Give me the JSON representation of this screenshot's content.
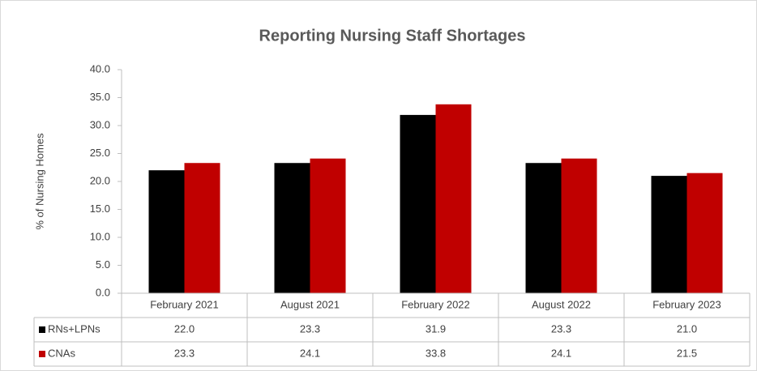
{
  "chart_data": {
    "type": "bar",
    "title": "Reporting Nursing Staff Shortages",
    "y_label": "% of Nursing Homes",
    "categories": [
      "February 2021",
      "August 2021",
      "February 2022",
      "August 2022",
      "February 2023"
    ],
    "series": [
      {
        "name": "RNs+LPNs",
        "color": "#000000",
        "values": [
          22.0,
          23.3,
          31.9,
          23.3,
          21.0
        ],
        "value_labels": [
          "22.0",
          "23.3",
          "31.9",
          "23.3",
          "21.0"
        ]
      },
      {
        "name": "CNAs",
        "color": "#c00000",
        "values": [
          23.3,
          24.1,
          33.8,
          24.1,
          21.5
        ],
        "value_labels": [
          "23.3",
          "24.1",
          "33.8",
          "24.1",
          "21.5"
        ]
      }
    ],
    "ylim": [
      0,
      40
    ],
    "yticks": [
      {
        "value": 0,
        "label": "0.0"
      },
      {
        "value": 5,
        "label": "5.0"
      },
      {
        "value": 10,
        "label": "10.0"
      },
      {
        "value": 15,
        "label": "15.0"
      },
      {
        "value": 20,
        "label": "20.0"
      },
      {
        "value": 25,
        "label": "25.0"
      },
      {
        "value": 30,
        "label": "30.0"
      },
      {
        "value": 35,
        "label": "35.0"
      },
      {
        "value": 40,
        "label": "40.0"
      }
    ],
    "grid": false
  }
}
